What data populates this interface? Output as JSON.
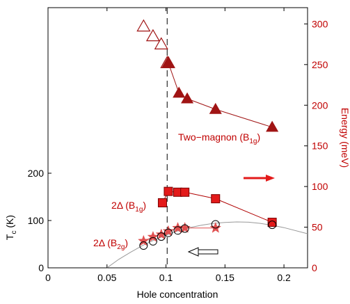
{
  "chart_data": {
    "type": "scatter",
    "xlabel": "Hole concentration",
    "ylabel_left": "T",
    "ylabel_left_sub": "c",
    "ylabel_left_unit": " (K)",
    "ylabel_right": "Energy (meV)",
    "xlim": [
      0,
      0.22
    ],
    "ylim_left": [
      0,
      550
    ],
    "ylim_right": [
      0,
      320
    ],
    "xticks": [
      0,
      0.05,
      0.1,
      0.15,
      0.2
    ],
    "xtick_labels": [
      "0",
      "0.05",
      "0.1",
      "0.15",
      "0.2"
    ],
    "yticks_left": [
      0,
      100,
      200
    ],
    "ytick_labels_left": [
      "0",
      "100",
      "200"
    ],
    "yticks_right": [
      0,
      50,
      100,
      150,
      200,
      250,
      300
    ],
    "ytick_labels_right": [
      "0",
      "50",
      "100",
      "150",
      "200",
      "250",
      "300"
    ],
    "vline_x": 0.101,
    "colors": {
      "dark_red": "#a01414",
      "red": "#e31a1a",
      "salmon": "#e05050",
      "black": "#000000",
      "gray": "#999999"
    },
    "series": [
      {
        "key": "two_magnon_open",
        "axis": "right",
        "marker": "open-triangle",
        "x": [
          0.081,
          0.089,
          0.096,
          0.101,
          0.102
        ],
        "y": [
          297,
          285,
          275,
          252,
          252
        ]
      },
      {
        "key": "two_magnon_filled",
        "axis": "right",
        "marker": "filled-triangle",
        "line": true,
        "x": [
          0.102,
          0.111,
          0.118,
          0.142,
          0.19
        ],
        "y": [
          252,
          215,
          208,
          195,
          173
        ]
      },
      {
        "key": "delta_b1g",
        "axis": "right",
        "marker": "filled-square",
        "line": true,
        "x": [
          0.097,
          0.102,
          0.11,
          0.116,
          0.142,
          0.19
        ],
        "y": [
          80,
          94,
          93,
          93,
          85,
          56
        ]
      },
      {
        "key": "delta_b2g",
        "axis": "right",
        "marker": "star",
        "line": true,
        "x": [
          0.081,
          0.089,
          0.096,
          0.102,
          0.11,
          0.116,
          0.142
        ],
        "y": [
          33,
          38,
          41,
          45,
          49,
          49,
          49
        ]
      },
      {
        "key": "tc",
        "axis": "left",
        "marker": "open-circle",
        "x": [
          0.081,
          0.089,
          0.096,
          0.102,
          0.11,
          0.116,
          0.142,
          0.19
        ],
        "y": [
          47,
          56,
          66,
          74,
          79,
          83,
          92,
          91
        ]
      }
    ],
    "tc_curve": {
      "x": [
        0.05,
        0.06,
        0.07,
        0.08,
        0.09,
        0.1,
        0.11,
        0.12,
        0.13,
        0.14,
        0.15,
        0.16,
        0.17,
        0.18,
        0.19,
        0.2,
        0.22
      ],
      "y": [
        0,
        18,
        33,
        47,
        59,
        69,
        78,
        85,
        90,
        94,
        96,
        97,
        96.5,
        94,
        90,
        85,
        72
      ]
    },
    "annotations": {
      "two_magnon": "Two−magnon (B",
      "two_magnon_sub": "1g",
      "two_magnon_close": ")",
      "delta_b1g": "2Δ (B",
      "delta_b1g_sub": "1g",
      "delta_b1g_close": ")",
      "delta_b2g": "2Δ (B",
      "delta_b2g_sub": "2g",
      "delta_b2g_close": ")"
    }
  }
}
